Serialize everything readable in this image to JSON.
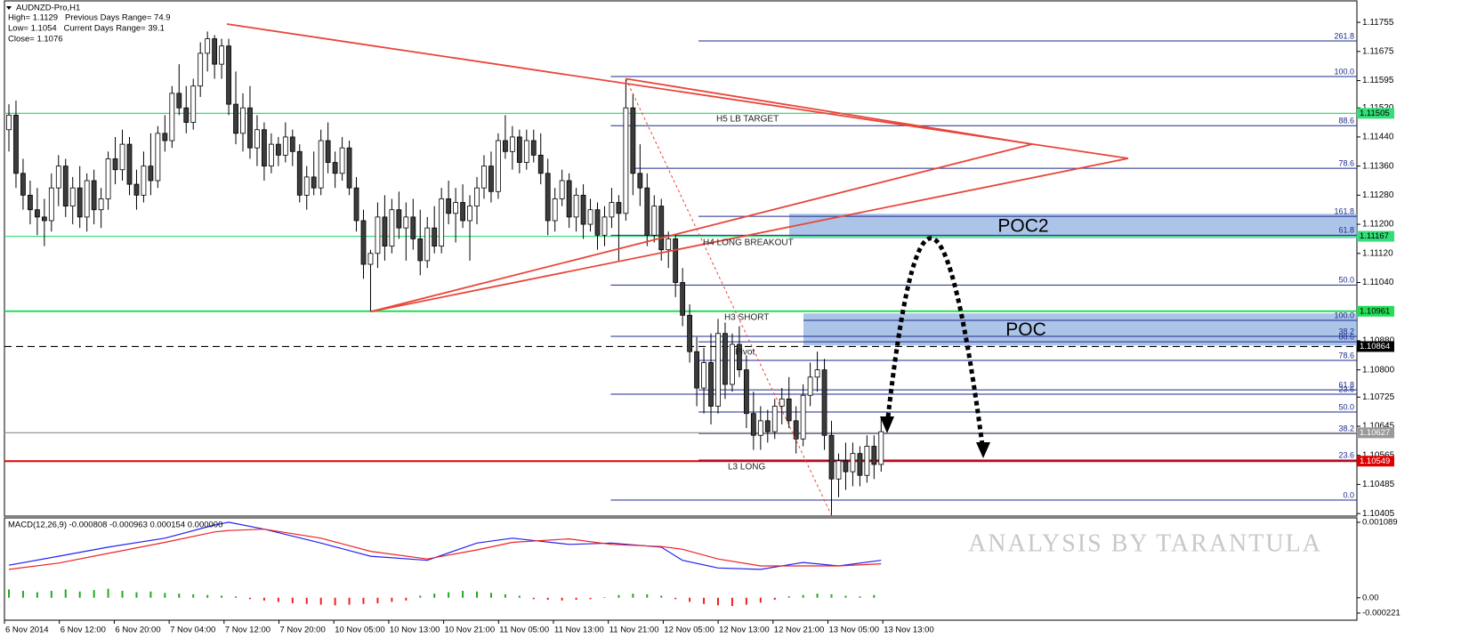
{
  "chart_data": {
    "type": "candlestick",
    "title": "AUDNZD-Pro,H1",
    "info": [
      "High= 1.1129   Previous Days Range= 74.9",
      "Low= 1.1054   Current Days Range= 39.1",
      "Close= 1.1076"
    ],
    "categories": [
      "6 Nov 2014",
      "6 Nov 12:00",
      "6 Nov 20:00",
      "7 Nov 04:00",
      "7 Nov 12:00",
      "7 Nov 20:00",
      "10 Nov 05:00",
      "10 Nov 13:00",
      "10 Nov 21:00",
      "11 Nov 05:00",
      "11 Nov 13:00",
      "11 Nov 21:00",
      "12 Nov 05:00",
      "12 Nov 13:00",
      "12 Nov 21:00",
      "13 Nov 05:00",
      "13 Nov 13:00"
    ],
    "up_color": "#ffffff",
    "down_color": "#3c3c3c",
    "candles": [
      [
        1.1146,
        1.1153,
        1.114,
        1.115
      ],
      [
        1.115,
        1.1154,
        1.113,
        1.1134
      ],
      [
        1.1134,
        1.1138,
        1.1124,
        1.1128
      ],
      [
        1.1128,
        1.1132,
        1.112,
        1.1124
      ],
      [
        1.1124,
        1.113,
        1.1117,
        1.1122
      ],
      [
        1.1122,
        1.1127,
        1.1114,
        1.1121
      ],
      [
        1.1121,
        1.1134,
        1.1118,
        1.113
      ],
      [
        1.113,
        1.1139,
        1.1125,
        1.1136
      ],
      [
        1.1136,
        1.1138,
        1.1122,
        1.1125
      ],
      [
        1.1125,
        1.1133,
        1.112,
        1.113
      ],
      [
        1.113,
        1.1136,
        1.1119,
        1.1122
      ],
      [
        1.1122,
        1.1134,
        1.1118,
        1.1132
      ],
      [
        1.1132,
        1.1135,
        1.112,
        1.1124
      ],
      [
        1.1124,
        1.113,
        1.1119,
        1.1127
      ],
      [
        1.1127,
        1.114,
        1.1124,
        1.1138
      ],
      [
        1.1138,
        1.1144,
        1.1131,
        1.1135
      ],
      [
        1.1135,
        1.1146,
        1.1132,
        1.1142
      ],
      [
        1.1142,
        1.1144,
        1.1128,
        1.1131
      ],
      [
        1.1131,
        1.1135,
        1.1124,
        1.1128
      ],
      [
        1.1128,
        1.114,
        1.1126,
        1.1136
      ],
      [
        1.1136,
        1.1145,
        1.1128,
        1.1132
      ],
      [
        1.1132,
        1.1147,
        1.113,
        1.1145
      ],
      [
        1.1145,
        1.115,
        1.114,
        1.1143
      ],
      [
        1.1143,
        1.1158,
        1.1141,
        1.1156
      ],
      [
        1.1156,
        1.1164,
        1.115,
        1.1152
      ],
      [
        1.1152,
        1.1158,
        1.1145,
        1.1148
      ],
      [
        1.1148,
        1.116,
        1.1146,
        1.1158
      ],
      [
        1.1158,
        1.117,
        1.1155,
        1.1167
      ],
      [
        1.1167,
        1.1173,
        1.1162,
        1.1171
      ],
      [
        1.1171,
        1.1172,
        1.116,
        1.1164
      ],
      [
        1.1164,
        1.1171,
        1.116,
        1.1169
      ],
      [
        1.1169,
        1.1171,
        1.115,
        1.1153
      ],
      [
        1.1153,
        1.1162,
        1.1142,
        1.1145
      ],
      [
        1.1145,
        1.1156,
        1.114,
        1.1152
      ],
      [
        1.1152,
        1.1158,
        1.1138,
        1.1141
      ],
      [
        1.1141,
        1.115,
        1.1136,
        1.1146
      ],
      [
        1.1146,
        1.1148,
        1.1132,
        1.1136
      ],
      [
        1.1136,
        1.1145,
        1.1134,
        1.1142
      ],
      [
        1.1142,
        1.1144,
        1.1136,
        1.1139
      ],
      [
        1.1139,
        1.1148,
        1.1137,
        1.1144
      ],
      [
        1.1144,
        1.1146,
        1.1136,
        1.114
      ],
      [
        1.114,
        1.1142,
        1.1126,
        1.1128
      ],
      [
        1.1128,
        1.1136,
        1.1124,
        1.1133
      ],
      [
        1.1133,
        1.114,
        1.1128,
        1.113
      ],
      [
        1.113,
        1.1146,
        1.1128,
        1.1143
      ],
      [
        1.1143,
        1.1148,
        1.1134,
        1.1137
      ],
      [
        1.1137,
        1.114,
        1.113,
        1.1134
      ],
      [
        1.1134,
        1.1144,
        1.1132,
        1.1141
      ],
      [
        1.1141,
        1.1143,
        1.1128,
        1.113
      ],
      [
        1.113,
        1.1133,
        1.1118,
        1.1121
      ],
      [
        1.1121,
        1.1124,
        1.1105,
        1.1109
      ],
      [
        1.1109,
        1.1113,
        1.1096,
        1.1112
      ],
      [
        1.1112,
        1.1126,
        1.1108,
        1.1122
      ],
      [
        1.1122,
        1.1128,
        1.111,
        1.1114
      ],
      [
        1.1114,
        1.1127,
        1.1112,
        1.1124
      ],
      [
        1.1124,
        1.1129,
        1.1116,
        1.1119
      ],
      [
        1.1119,
        1.1126,
        1.111,
        1.1122
      ],
      [
        1.1122,
        1.1127,
        1.1113,
        1.1116
      ],
      [
        1.1116,
        1.1124,
        1.1106,
        1.111
      ],
      [
        1.111,
        1.1122,
        1.1108,
        1.1119
      ],
      [
        1.1119,
        1.1125,
        1.1112,
        1.1114
      ],
      [
        1.1114,
        1.113,
        1.1112,
        1.1127
      ],
      [
        1.1127,
        1.1132,
        1.112,
        1.1123
      ],
      [
        1.1123,
        1.113,
        1.1115,
        1.1126
      ],
      [
        1.1126,
        1.1131,
        1.1119,
        1.1121
      ],
      [
        1.1121,
        1.1128,
        1.111,
        1.1125
      ],
      [
        1.1125,
        1.1133,
        1.112,
        1.113
      ],
      [
        1.113,
        1.1139,
        1.1127,
        1.1136
      ],
      [
        1.1136,
        1.114,
        1.1126,
        1.1129
      ],
      [
        1.1129,
        1.1145,
        1.1127,
        1.1143
      ],
      [
        1.1143,
        1.115,
        1.1138,
        1.114
      ],
      [
        1.114,
        1.1147,
        1.1135,
        1.1144
      ],
      [
        1.1144,
        1.1146,
        1.1134,
        1.1137
      ],
      [
        1.1137,
        1.1146,
        1.1135,
        1.1143
      ],
      [
        1.1143,
        1.1146,
        1.1137,
        1.1139
      ],
      [
        1.1139,
        1.1145,
        1.1131,
        1.1134
      ],
      [
        1.1134,
        1.1138,
        1.1117,
        1.1121
      ],
      [
        1.1121,
        1.113,
        1.1118,
        1.1127
      ],
      [
        1.1127,
        1.1135,
        1.1125,
        1.1132
      ],
      [
        1.1132,
        1.1134,
        1.1119,
        1.1122
      ],
      [
        1.1122,
        1.113,
        1.1118,
        1.1128
      ],
      [
        1.1128,
        1.1131,
        1.1116,
        1.112
      ],
      [
        1.112,
        1.1127,
        1.1118,
        1.1124
      ],
      [
        1.1124,
        1.1126,
        1.1113,
        1.1117
      ],
      [
        1.1117,
        1.1125,
        1.1114,
        1.1122
      ],
      [
        1.1122,
        1.113,
        1.1119,
        1.1126
      ],
      [
        1.1126,
        1.1128,
        1.111,
        1.1123
      ],
      [
        1.1123,
        1.116,
        1.1121,
        1.1152
      ],
      [
        1.1152,
        1.1156,
        1.1128,
        1.1134
      ],
      [
        1.1134,
        1.1142,
        1.1125,
        1.113
      ],
      [
        1.113,
        1.1134,
        1.1114,
        1.1117
      ],
      [
        1.1117,
        1.1128,
        1.1115,
        1.1125
      ],
      [
        1.1125,
        1.1127,
        1.111,
        1.1113
      ],
      [
        1.1113,
        1.1118,
        1.1108,
        1.1116
      ],
      [
        1.1116,
        1.1117,
        1.11,
        1.1104
      ],
      [
        1.1104,
        1.1108,
        1.1092,
        1.1095
      ],
      [
        1.1095,
        1.1098,
        1.1082,
        1.1085
      ],
      [
        1.1085,
        1.1089,
        1.107,
        1.1075
      ],
      [
        1.1075,
        1.1086,
        1.1068,
        1.1082
      ],
      [
        1.1082,
        1.109,
        1.1065,
        1.107
      ],
      [
        1.107,
        1.1094,
        1.1068,
        1.109
      ],
      [
        1.109,
        1.1093,
        1.1072,
        1.1076
      ],
      [
        1.1076,
        1.109,
        1.1074,
        1.1087
      ],
      [
        1.1087,
        1.1092,
        1.1078,
        1.108
      ],
      [
        1.108,
        1.1084,
        1.1064,
        1.1068
      ],
      [
        1.1068,
        1.1074,
        1.1058,
        1.1062
      ],
      [
        1.1062,
        1.107,
        1.1058,
        1.1066
      ],
      [
        1.1066,
        1.1069,
        1.106,
        1.1063
      ],
      [
        1.1063,
        1.1072,
        1.1061,
        1.107
      ],
      [
        1.107,
        1.1075,
        1.1065,
        1.1072
      ],
      [
        1.1072,
        1.1078,
        1.1064,
        1.1066
      ],
      [
        1.1066,
        1.107,
        1.1057,
        1.1061
      ],
      [
        1.1061,
        1.1076,
        1.1059,
        1.1073
      ],
      [
        1.1073,
        1.1082,
        1.107,
        1.1078
      ],
      [
        1.1078,
        1.1085,
        1.1074,
        1.108
      ],
      [
        1.108,
        1.1083,
        1.1058,
        1.1062
      ],
      [
        1.1062,
        1.1066,
        1.104,
        1.105
      ],
      [
        1.105,
        1.1057,
        1.1045,
        1.1055
      ],
      [
        1.1055,
        1.106,
        1.1047,
        1.1052
      ],
      [
        1.1052,
        1.106,
        1.1048,
        1.1057
      ],
      [
        1.1057,
        1.1059,
        1.1048,
        1.1051
      ],
      [
        1.1051,
        1.1062,
        1.1049,
        1.1059
      ],
      [
        1.1059,
        1.1062,
        1.105,
        1.1054
      ],
      [
        1.1054,
        1.1067,
        1.1052,
        1.1063
      ]
    ],
    "ylim": [
      1.10398,
      1.11814
    ],
    "yticks": [
      1.11755,
      1.11675,
      1.11595,
      {
        "value": 1.1152,
        "label": "1.11520"
      },
      {
        "value": 1.1144,
        "label": "1.11440"
      },
      {
        "value": 1.1136,
        "label": "1.11360"
      },
      {
        "value": 1.1128,
        "label": "1.11280"
      },
      {
        "value": 1.112,
        "label": "1.11200"
      },
      {
        "value": 1.1112,
        "label": "1.11120"
      },
      {
        "value": 1.1104,
        "label": "1.11040"
      },
      {
        "value": 1.1088,
        "label": "1.10880"
      },
      {
        "value": 1.108,
        "label": "1.10800"
      },
      1.10725,
      1.10645,
      1.10565,
      1.10485,
      1.10405
    ],
    "levels": [
      {
        "value": 1.11505,
        "color": "#33dd77"
      },
      {
        "value": 1.11167,
        "color": "#33dd77"
      },
      {
        "value": 1.10961,
        "color": "#22dd55"
      },
      {
        "value": 1.10864,
        "color": "#000000"
      },
      {
        "value": 1.10627,
        "color": "#999999"
      },
      {
        "value": 1.10549,
        "color": "#e00000"
      }
    ],
    "fib": [
      {
        "label": "261.8",
        "value": 1.11704
      },
      {
        "label": "100.0",
        "value": 1.11606
      },
      {
        "label": "88.6",
        "value": 1.11471
      },
      {
        "label": "78.6",
        "value": 1.11354
      },
      {
        "label": "161.8",
        "value": 1.11222
      },
      {
        "label": "61.8",
        "value": 1.1117
      },
      {
        "label": "50.0",
        "value": 1.11033
      },
      {
        "label": "100.0",
        "value": 1.10936
      },
      {
        "label": "38.2",
        "value": 1.10892
      },
      {
        "label": "88.6",
        "value": 1.10877
      },
      {
        "label": "78.6",
        "value": 1.10826
      },
      {
        "label": "61.8",
        "value": 1.10745
      },
      {
        "label": "23.6",
        "value": 1.10733
      },
      {
        "label": "50.0",
        "value": 1.10684
      },
      {
        "label": "38.2",
        "value": 1.10625
      },
      {
        "label": "23.6",
        "value": 1.10552
      },
      {
        "label": "0.0",
        "value": 1.10442
      }
    ],
    "zones": [
      {
        "label": "POC2",
        "top": 1.11229,
        "bottom": 1.11161
      },
      {
        "label": "POC",
        "top": 1.10955,
        "bottom": 1.10867
      }
    ],
    "annotations": [
      "H5 LB TARGET",
      "H4 LONG BREAKOUT",
      "H3 SHORT",
      "Pivot",
      "L3 LONG"
    ],
    "watermark": "ANALYSIS BY TARANTULA",
    "macd": {
      "label": "MACD(12,26,9) -0.000808 -0.000963 0.000154 0.000000",
      "ylim": [
        -0.000324,
        0.001153
      ],
      "yticks": [
        0.001089,
        {
          "value": 0,
          "label": "0.00"
        },
        -0.000221
      ],
      "x": [
        0,
        7,
        14,
        22,
        29,
        31,
        36,
        44,
        51,
        59,
        66,
        71,
        79,
        85,
        92,
        95,
        100,
        106,
        112,
        117,
        123
      ],
      "series": [
        {
          "color": "#2222ee",
          "values": [
            0.00047,
            0.0006,
            0.00073,
            0.00086,
            0.00105,
            0.00109,
            0.00099,
            0.00079,
            0.0006,
            0.00054,
            0.00079,
            0.00086,
            0.00077,
            0.00079,
            0.00073,
            0.00054,
            0.00043,
            0.00041,
            0.00051,
            0.00046,
            0.00054
          ]
        },
        {
          "color": "#ee2222",
          "values": [
            0.00041,
            0.0005,
            0.00064,
            0.0008,
            0.00095,
            0.00097,
            0.00099,
            0.00086,
            0.00067,
            0.00056,
            0.00069,
            0.0008,
            0.00085,
            0.00077,
            0.00074,
            0.0007,
            0.00056,
            0.00046,
            0.00046,
            0.00046,
            0.00049
          ]
        }
      ],
      "histogram": [
        0.00012,
        0.0001,
        8e-05,
        0.0001,
        0.00012,
        9e-05,
        0.00011,
        0.00013,
        0.0001,
        8e-05,
        9e-05,
        7e-05,
        6e-05,
        5e-05,
        4e-05,
        3e-05,
        2e-05,
        -2e-05,
        -4e-05,
        -6e-05,
        -8e-05,
        -9e-05,
        -0.0001,
        -0.00011,
        -0.0001,
        -9e-05,
        -8e-05,
        -6e-05,
        -4e-05,
        3e-05,
        6e-05,
        8e-05,
        0.0001,
        9e-05,
        7e-05,
        5e-05,
        3e-05,
        -2e-05,
        -3e-05,
        -4e-05,
        -3e-05,
        -2e-05,
        1e-05,
        4e-05,
        6e-05,
        5e-05,
        3e-05,
        -2e-05,
        -6e-05,
        -9e-05,
        -0.00011,
        -0.00012,
        -0.0001,
        -7e-05,
        -3e-05,
        2e-05,
        4e-05,
        6e-05,
        5e-05,
        3e-05,
        2e-05,
        4e-05
      ],
      "hist_up": "#22aa22",
      "hist_down": "#ee2222"
    }
  }
}
